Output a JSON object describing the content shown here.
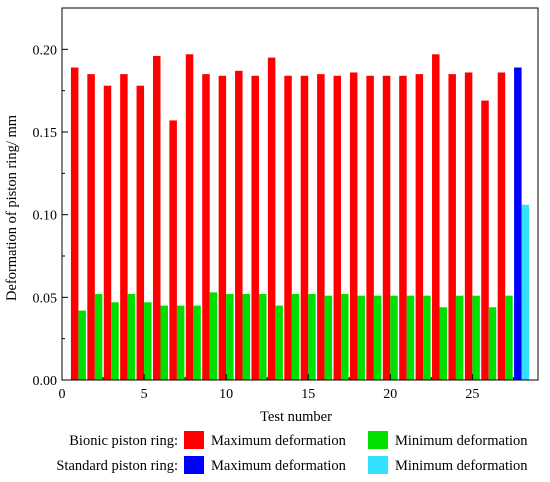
{
  "chart_data": {
    "type": "bar",
    "xlabel": "Test number",
    "ylabel": "Deformation of piston ring/ mm",
    "xlim": [
      0,
      29
    ],
    "ylim": [
      0,
      0.225
    ],
    "xticks": [
      0,
      5,
      10,
      15,
      20,
      25
    ],
    "yticks": [
      0.0,
      0.05,
      0.1,
      0.15,
      0.2
    ],
    "ytick_labels": [
      "0.00",
      "0.05",
      "0.10",
      "0.15",
      "0.20"
    ],
    "grid": false,
    "legend": {
      "placement": "bottom",
      "groups": [
        {
          "label": "Bionic piston ring:",
          "entries": [
            {
              "label": "Maximum deformation",
              "color": "#ff0000"
            },
            {
              "label": "Minimum deformation",
              "color": "#00e000"
            }
          ]
        },
        {
          "label": "Standard piston ring:",
          "entries": [
            {
              "label": "Maximum deformation",
              "color": "#0000ff"
            },
            {
              "label": "Minimum deformation",
              "color": "#33e0ff"
            }
          ]
        }
      ]
    },
    "bionic": {
      "x": [
        1,
        2,
        3,
        4,
        5,
        6,
        7,
        8,
        9,
        10,
        11,
        12,
        13,
        14,
        15,
        16,
        17,
        18,
        19,
        20,
        21,
        22,
        23,
        24,
        25,
        26,
        27
      ],
      "max": [
        0.189,
        0.185,
        0.178,
        0.185,
        0.178,
        0.196,
        0.157,
        0.197,
        0.185,
        0.184,
        0.187,
        0.184,
        0.195,
        0.184,
        0.184,
        0.185,
        0.184,
        0.186,
        0.184,
        0.184,
        0.184,
        0.185,
        0.197,
        0.185,
        0.186,
        0.169,
        0.186
      ],
      "min": [
        0.042,
        0.052,
        0.047,
        0.052,
        0.047,
        0.045,
        0.045,
        0.045,
        0.053,
        0.052,
        0.052,
        0.052,
        0.045,
        0.052,
        0.052,
        0.051,
        0.052,
        0.051,
        0.051,
        0.051,
        0.051,
        0.051,
        0.044,
        0.051,
        0.051,
        0.044,
        0.051
      ]
    },
    "standard": {
      "x": [
        28
      ],
      "max": [
        0.189
      ],
      "min": [
        0.106
      ]
    },
    "colors": {
      "bionic_max": "#ff0000",
      "bionic_min": "#00e000",
      "standard_max": "#0000ff",
      "standard_min": "#33e0ff"
    }
  }
}
